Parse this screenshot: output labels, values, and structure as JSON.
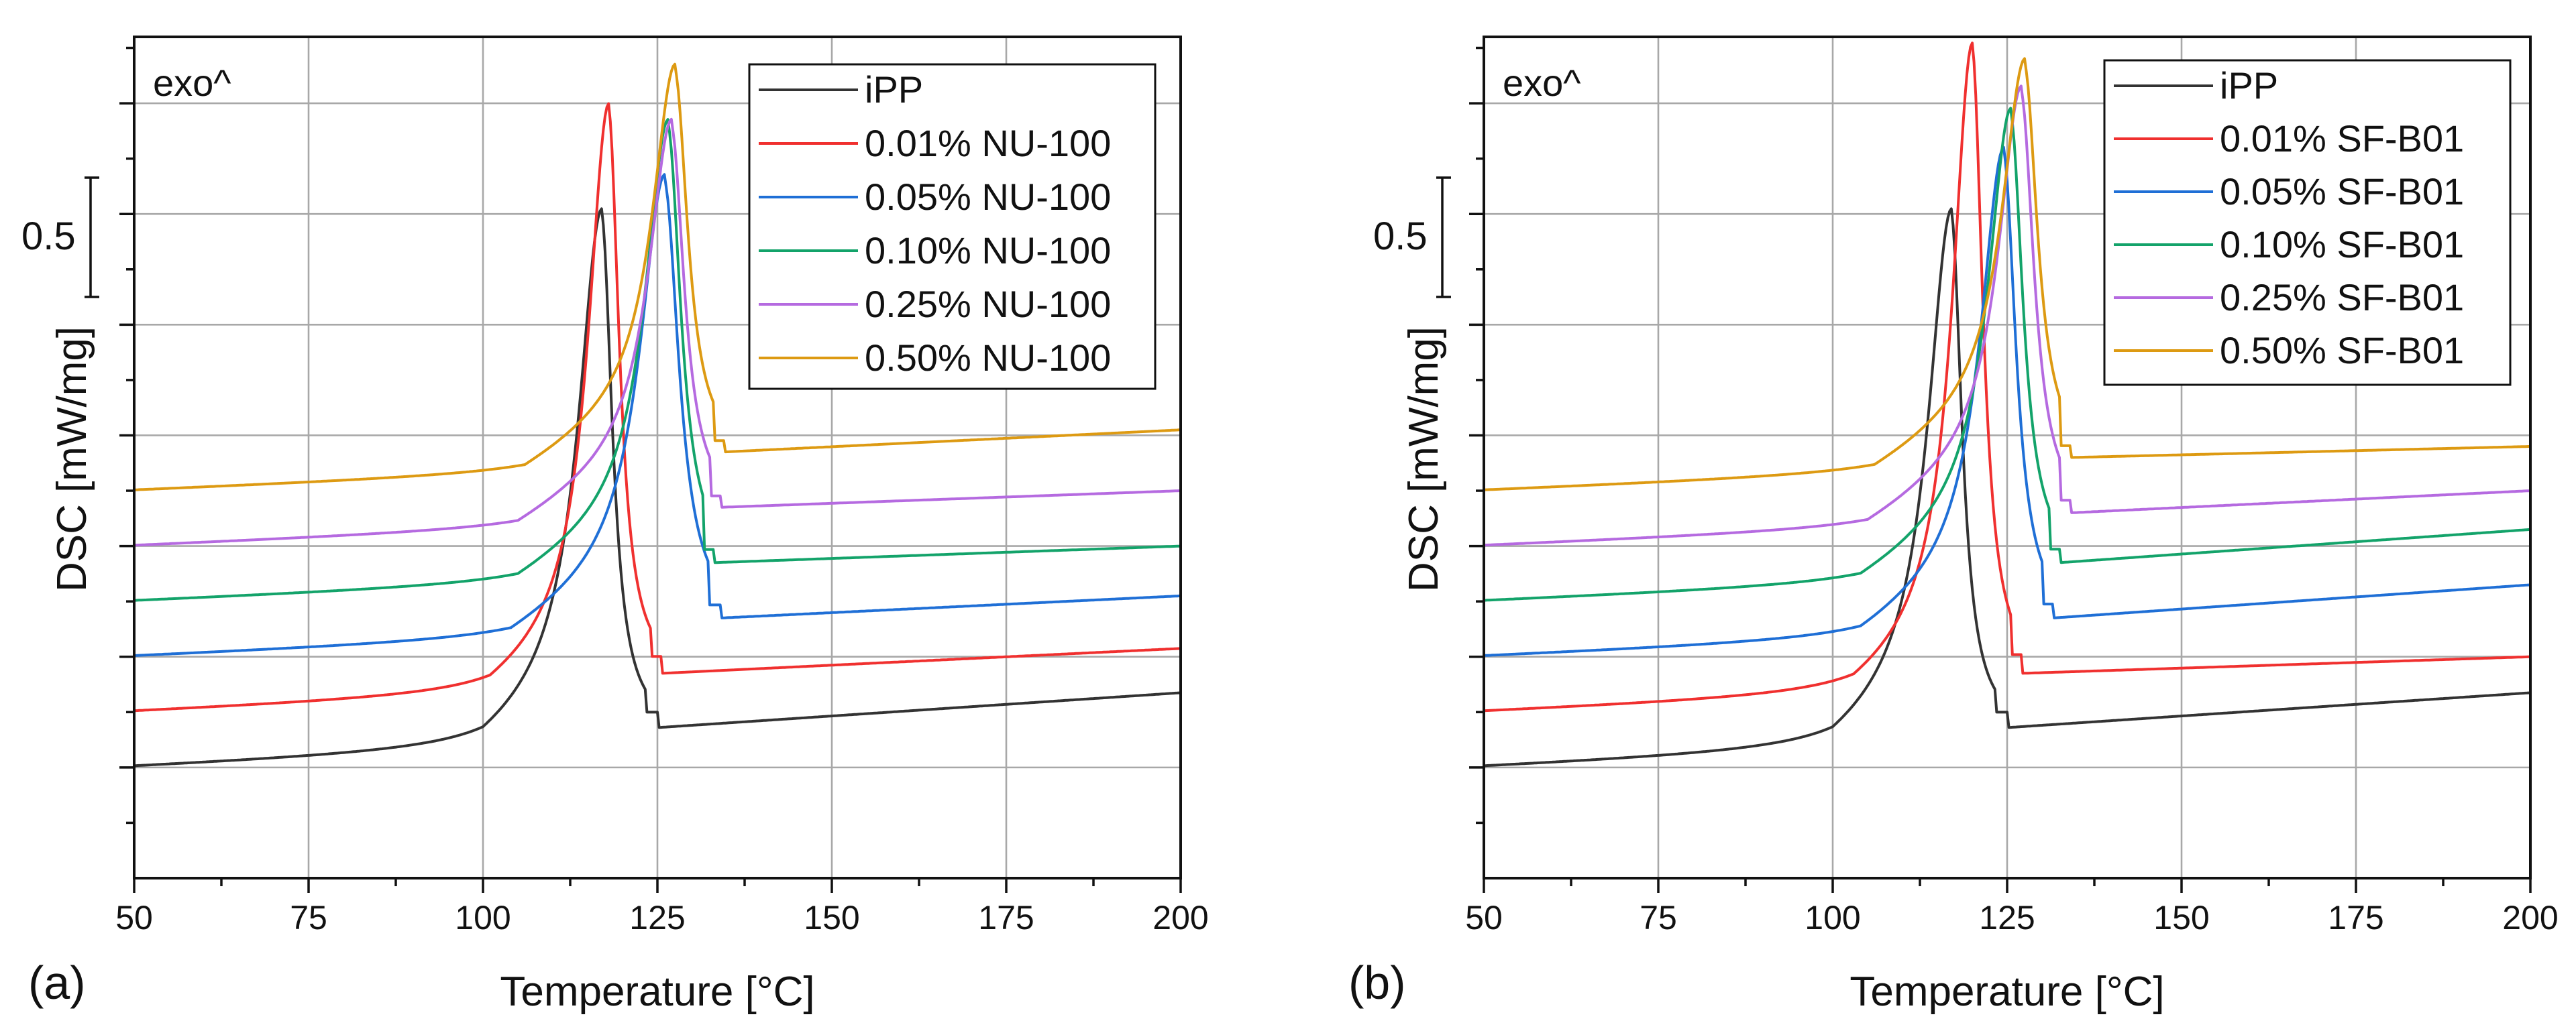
{
  "figure": {
    "caption_labels": [
      "(a)",
      "(b)"
    ]
  },
  "chart_data": [
    {
      "type": "line",
      "panel_label": "(a)",
      "xlabel": "Temperature [°C]",
      "ylabel": "DSC [mW/mg]",
      "annotation": "exo^",
      "scale_bar_label": "0.5",
      "scale_bar_value": 0.5,
      "xlim": [
        50,
        200
      ],
      "ylim": [
        -0.2,
        1.32
      ],
      "xticks": [
        50,
        75,
        100,
        125,
        150,
        175,
        200
      ],
      "xtick_labels": [
        "50",
        "75",
        "100",
        "125",
        "150",
        "175",
        "200"
      ],
      "grid": true,
      "legend_position": "top-right",
      "series": [
        {
          "name": "iPP",
          "color": "#333333",
          "baseline": 0.0,
          "end": 0.135,
          "onset": 100,
          "peak_x": 117.0,
          "peak_y": 1.0,
          "valley_x": 125.0,
          "valley_y": 0.072,
          "left_width": 4.0,
          "right_width": 1.9
        },
        {
          "name": "0.01% NU-100",
          "color": "#f0302f",
          "baseline": 0.1,
          "end": 0.215,
          "onset": 101,
          "peak_x": 118.0,
          "peak_y": 1.19,
          "valley_x": 125.5,
          "valley_y": 0.17,
          "left_width": 3.5,
          "right_width": 1.9
        },
        {
          "name": "0.05% NU-100",
          "color": "#1f6fd6",
          "baseline": 0.2,
          "end": 0.31,
          "onset": 104,
          "peak_x": 126.0,
          "peak_y": 1.06,
          "valley_x": 134.0,
          "valley_y": 0.27,
          "left_width": 4.2,
          "right_width": 2.6
        },
        {
          "name": "0.10% NU-100",
          "color": "#13a36a",
          "baseline": 0.3,
          "end": 0.4,
          "onset": 105,
          "peak_x": 126.5,
          "peak_y": 1.16,
          "valley_x": 133.0,
          "valley_y": 0.37,
          "left_width": 3.9,
          "right_width": 2.3
        },
        {
          "name": "0.25% NU-100",
          "color": "#b56ae0",
          "baseline": 0.4,
          "end": 0.5,
          "onset": 105,
          "peak_x": 127.0,
          "peak_y": 1.16,
          "valley_x": 134.0,
          "valley_y": 0.47,
          "left_width": 3.9,
          "right_width": 2.3
        },
        {
          "name": "0.50% NU-100",
          "color": "#dd9a12",
          "baseline": 0.5,
          "end": 0.61,
          "onset": 106,
          "peak_x": 127.5,
          "peak_y": 1.26,
          "valley_x": 134.5,
          "valley_y": 0.57,
          "left_width": 3.9,
          "right_width": 2.3
        }
      ]
    },
    {
      "type": "line",
      "panel_label": "(b)",
      "xlabel": "Temperature [°C]",
      "ylabel": "DSC [mW/mg]",
      "annotation": "exo^",
      "scale_bar_label": "0.5",
      "scale_bar_value": 0.5,
      "xlim": [
        50,
        200
      ],
      "ylim": [
        -0.2,
        1.32
      ],
      "xticks": [
        50,
        75,
        100,
        125,
        150,
        175,
        200
      ],
      "xtick_labels": [
        "50",
        "75",
        "100",
        "125",
        "150",
        "175",
        "200"
      ],
      "grid": true,
      "legend_position": "top-right",
      "series": [
        {
          "name": "iPP",
          "color": "#333333",
          "baseline": 0.0,
          "end": 0.135,
          "onset": 100,
          "peak_x": 117.0,
          "peak_y": 1.0,
          "valley_x": 125.0,
          "valley_y": 0.072,
          "left_width": 4.0,
          "right_width": 1.9
        },
        {
          "name": "0.01% SF-B01",
          "color": "#f0302f",
          "baseline": 0.1,
          "end": 0.2,
          "onset": 103,
          "peak_x": 120.0,
          "peak_y": 1.3,
          "valley_x": 127.0,
          "valley_y": 0.17,
          "left_width": 3.4,
          "right_width": 1.9
        },
        {
          "name": "0.05% SF-B01",
          "color": "#1f6fd6",
          "baseline": 0.2,
          "end": 0.33,
          "onset": 104,
          "peak_x": 124.5,
          "peak_y": 1.11,
          "valley_x": 131.5,
          "valley_y": 0.27,
          "left_width": 4.0,
          "right_width": 2.2
        },
        {
          "name": "0.10% SF-B01",
          "color": "#13a36a",
          "baseline": 0.3,
          "end": 0.43,
          "onset": 104,
          "peak_x": 125.5,
          "peak_y": 1.18,
          "valley_x": 132.5,
          "valley_y": 0.37,
          "left_width": 3.9,
          "right_width": 2.2
        },
        {
          "name": "0.25% SF-B01",
          "color": "#b56ae0",
          "baseline": 0.4,
          "end": 0.5,
          "onset": 105,
          "peak_x": 127.0,
          "peak_y": 1.22,
          "valley_x": 134.0,
          "valley_y": 0.46,
          "left_width": 3.9,
          "right_width": 2.3
        },
        {
          "name": "0.50% SF-B01",
          "color": "#dd9a12",
          "baseline": 0.5,
          "end": 0.58,
          "onset": 106,
          "peak_x": 127.5,
          "peak_y": 1.27,
          "valley_x": 134.0,
          "valley_y": 0.56,
          "left_width": 3.9,
          "right_width": 2.3
        }
      ]
    }
  ]
}
